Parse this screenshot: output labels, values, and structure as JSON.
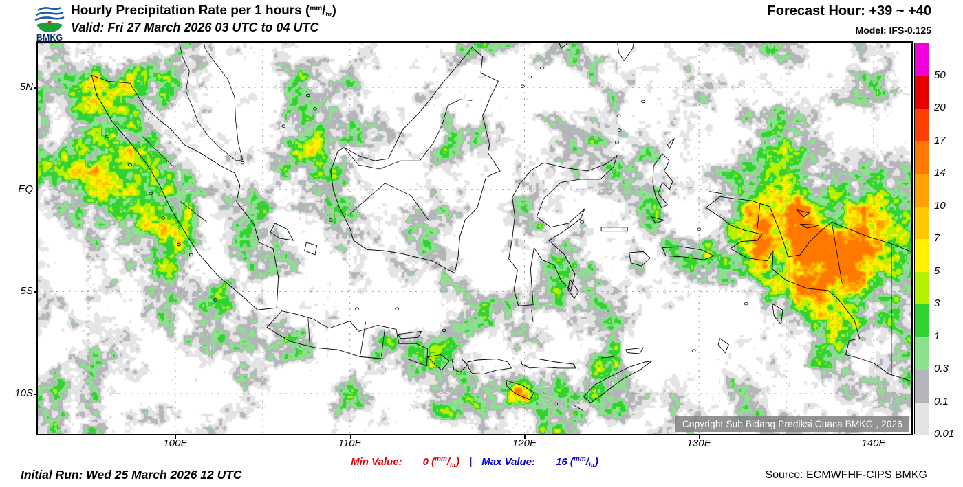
{
  "header": {
    "logo": {
      "text": "BMKG"
    },
    "title": "Hourly Precipitation Rate per 1 hours",
    "unit": {
      "numerator": "mm",
      "denominator": "hr"
    },
    "valid": "Valid: Fri 27 March 2026 03 UTC to 04 UTC",
    "forecast_hour": "Forecast Hour: +39 ~ +40",
    "model": "Model: IFS-0.125"
  },
  "map": {
    "lat_labels": [
      {
        "label": "5N",
        "lat": 5
      },
      {
        "label": "EQ",
        "lat": 0
      },
      {
        "label": "5S",
        "lat": -5
      },
      {
        "label": "10S",
        "lat": -10
      }
    ],
    "lon_labels": [
      {
        "label": "100E",
        "lon": 100
      },
      {
        "label": "110E",
        "lon": 110
      },
      {
        "label": "120E",
        "lon": 120
      },
      {
        "label": "130E",
        "lon": 130
      },
      {
        "label": "140E",
        "lon": 140
      }
    ],
    "copyright": "Copyright Sub Bidang Prediksi Cuaca BMKG , 2026"
  },
  "legend": {
    "segments": [
      {
        "label": "50",
        "color": "#f000dc"
      },
      {
        "label": "20",
        "color": "#e60000"
      },
      {
        "label": "17",
        "color": "#ff4000"
      },
      {
        "label": "14",
        "color": "#ff7800"
      },
      {
        "label": "10",
        "color": "#ffa200"
      },
      {
        "label": "7",
        "color": "#ffc800"
      },
      {
        "label": "5",
        "color": "#fff000"
      },
      {
        "label": "3",
        "color": "#b4f000"
      },
      {
        "label": "1",
        "color": "#32d232"
      },
      {
        "label": "0.3",
        "color": "#8ce28c"
      },
      {
        "label": "0.1",
        "color": "#b4b4ba"
      },
      {
        "label": "0.01",
        "color": "#e4e4e4"
      }
    ]
  },
  "footer": {
    "initial_run": "Initial Run: Wed 25 March 2026 12 UTC",
    "min_label": "Min Value:",
    "min_value": "0",
    "separator": "|",
    "max_label": "Max Value:",
    "max_value": "16",
    "unit": {
      "numerator": "mm",
      "denominator": "hr"
    },
    "source": "Source: ECMWFHF-CIPS BMKG"
  }
}
